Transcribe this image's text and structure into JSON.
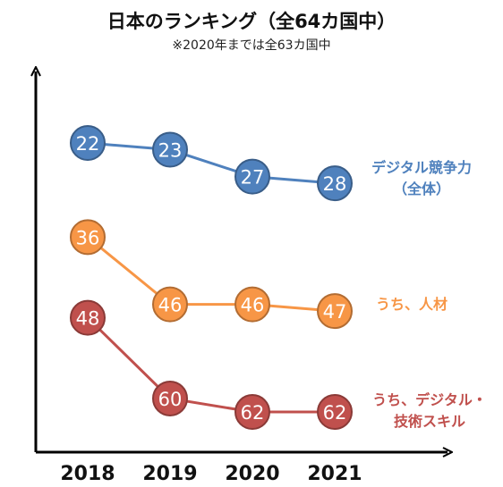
{
  "header": {
    "title": "日本のランキング（全64カ国中）",
    "subtitle": "※2020年までは全63カ国中"
  },
  "colors": {
    "blue": "#4f81bd",
    "orange": "#f79646",
    "red": "#c0504d"
  },
  "chart_data": {
    "type": "line",
    "title": "日本のランキング（全64カ国中）",
    "subtitle": "※2020年までは全63カ国中",
    "categories": [
      "2018",
      "2019",
      "2020",
      "2021"
    ],
    "y_inverted": true,
    "y_axis_labels": "none",
    "grid": false,
    "series": [
      {
        "name_lines": [
          "デジタル競争力",
          "（全体）"
        ],
        "color": "#4f81bd",
        "values": [
          22,
          23,
          27,
          28
        ]
      },
      {
        "name_lines": [
          "うち、人材"
        ],
        "color": "#f79646",
        "values": [
          36,
          46,
          46,
          47
        ]
      },
      {
        "name_lines": [
          "うち、デジタル・",
          "技術スキル"
        ],
        "color": "#c0504d",
        "values": [
          48,
          60,
          62,
          62
        ]
      }
    ]
  }
}
